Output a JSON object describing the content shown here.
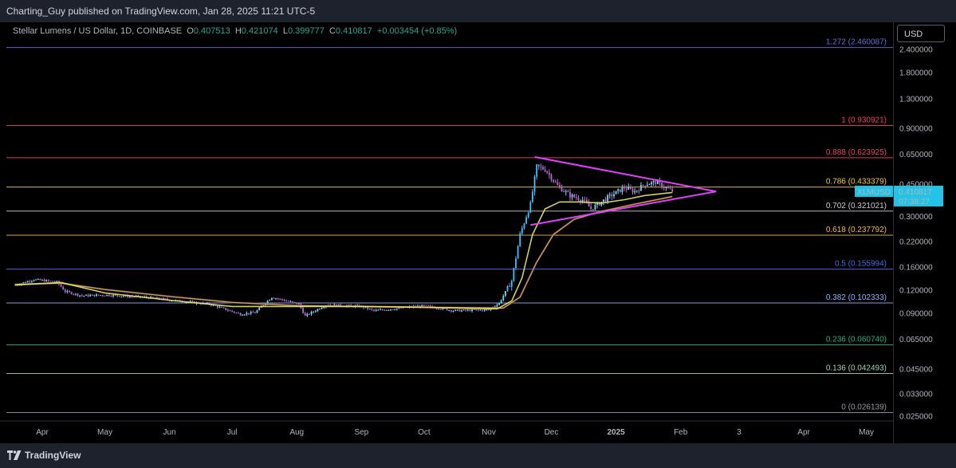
{
  "header": {
    "published": "Charting_Guy published on TradingView.com, Jan 28, 2025 11:21 UTC-5"
  },
  "legend": {
    "symbol": "Stellar Lumens / US Dollar, 1D, COINBASE",
    "o_key": "O",
    "o": "0.407513",
    "h_key": "H",
    "h": "0.421074",
    "l_key": "L",
    "l": "0.399777",
    "c_key": "C",
    "c": "0.410817",
    "change": "+0.003454 (+0.85%)"
  },
  "currency_button": "USD",
  "price_tag": {
    "symbol": "XLMUSD",
    "price": "0.410817",
    "countdown": "07:38:27",
    "color": "#22c3e6"
  },
  "footer": {
    "brand": "TradingView"
  },
  "chart_data": {
    "type": "candlestick",
    "symbol": "XLMUSD",
    "interval": "1D",
    "y_scale": "log",
    "ylim": [
      0.025,
      2.75
    ],
    "x_range": [
      "2024-03-19",
      "2025-05-19"
    ],
    "y_ticks": [
      "2.400000",
      "1.800000",
      "1.300000",
      "0.900000",
      "0.650000",
      "0.450000",
      "0.300000",
      "0.220000",
      "0.160000",
      "0.120000",
      "0.090000",
      "0.065000",
      "0.045000",
      "0.033000",
      "0.025000"
    ],
    "x_ticks": [
      {
        "label": "Apr",
        "date": "2024-04-01"
      },
      {
        "label": "May",
        "date": "2024-05-01"
      },
      {
        "label": "Jun",
        "date": "2024-06-01"
      },
      {
        "label": "Jul",
        "date": "2024-07-01"
      },
      {
        "label": "Aug",
        "date": "2024-08-01"
      },
      {
        "label": "Sep",
        "date": "2024-09-01"
      },
      {
        "label": "Oct",
        "date": "2024-10-01"
      },
      {
        "label": "Nov",
        "date": "2024-11-01"
      },
      {
        "label": "Dec",
        "date": "2024-12-01"
      },
      {
        "label": "2025",
        "date": "2025-01-01"
      },
      {
        "label": "Feb",
        "date": "2025-02-01"
      },
      {
        "label": "3",
        "date": "2025-03-01"
      },
      {
        "label": "Apr",
        "date": "2025-04-01"
      },
      {
        "label": "May",
        "date": "2025-05-01"
      }
    ],
    "fib_levels": [
      {
        "label": "1.272 (2.460087)",
        "price": 2.460087,
        "color": "#6b6bd6"
      },
      {
        "label": "1 (0.930921)",
        "price": 0.930921,
        "color": "#f23f6d"
      },
      {
        "label": "0.888 (0.623925)",
        "price": 0.623925,
        "color": "#e8436c"
      },
      {
        "label": "0.786 (0.433379)",
        "price": 0.433379,
        "color": "#f7c948"
      },
      {
        "label": "0.702 (0.321021)",
        "price": 0.321021,
        "color": "#c9ccd4"
      },
      {
        "label": "0.618 (0.237792)",
        "price": 0.237792,
        "color": "#f5b83d"
      },
      {
        "label": "0.5 (0.155994)",
        "price": 0.155994,
        "color": "#3f6fe0"
      },
      {
        "label": "0.382 (0.102333)",
        "price": 0.102333,
        "color": "#8fb2ff"
      },
      {
        "label": "0.236 (0.060740)",
        "price": 0.06074,
        "color": "#27b08a"
      },
      {
        "label": "0.136 (0.042493)",
        "price": 0.042493,
        "color": "#9fd4b6"
      },
      {
        "label": "0 (0.026139)",
        "price": 0.026139,
        "color": "#9598a1"
      }
    ],
    "price_path": [
      [
        "2024-03-19",
        0.128
      ],
      [
        "2024-03-28",
        0.137
      ],
      [
        "2024-04-08",
        0.133
      ],
      [
        "2024-04-12",
        0.118
      ],
      [
        "2024-04-20",
        0.112
      ],
      [
        "2024-05-01",
        0.113
      ],
      [
        "2024-05-20",
        0.11
      ],
      [
        "2024-06-05",
        0.105
      ],
      [
        "2024-06-20",
        0.101
      ],
      [
        "2024-07-05",
        0.089
      ],
      [
        "2024-07-12",
        0.091
      ],
      [
        "2024-07-20",
        0.11
      ],
      [
        "2024-08-02",
        0.101
      ],
      [
        "2024-08-05",
        0.087
      ],
      [
        "2024-08-15",
        0.1
      ],
      [
        "2024-09-01",
        0.098
      ],
      [
        "2024-09-07",
        0.093
      ],
      [
        "2024-09-20",
        0.096
      ],
      [
        "2024-10-01",
        0.099
      ],
      [
        "2024-10-15",
        0.093
      ],
      [
        "2024-11-01",
        0.094
      ],
      [
        "2024-11-06",
        0.102
      ],
      [
        "2024-11-12",
        0.135
      ],
      [
        "2024-11-16",
        0.24
      ],
      [
        "2024-11-21",
        0.35
      ],
      [
        "2024-11-24",
        0.56
      ],
      [
        "2024-11-28",
        0.54
      ],
      [
        "2024-12-04",
        0.44
      ],
      [
        "2024-12-10",
        0.39
      ],
      [
        "2024-12-16",
        0.37
      ],
      [
        "2024-12-20",
        0.33
      ],
      [
        "2024-12-28",
        0.38
      ],
      [
        "2025-01-05",
        0.43
      ],
      [
        "2025-01-10",
        0.41
      ],
      [
        "2025-01-15",
        0.45
      ],
      [
        "2025-01-20",
        0.46
      ],
      [
        "2025-01-28",
        0.410817
      ]
    ],
    "ema_fast": [
      [
        "2024-03-19",
        0.128
      ],
      [
        "2024-04-10",
        0.132
      ],
      [
        "2024-05-01",
        0.116
      ],
      [
        "2024-06-01",
        0.106
      ],
      [
        "2024-07-01",
        0.098
      ],
      [
        "2024-08-01",
        0.098
      ],
      [
        "2024-09-01",
        0.098
      ],
      [
        "2024-10-01",
        0.097
      ],
      [
        "2024-11-05",
        0.095
      ],
      [
        "2024-11-12",
        0.105
      ],
      [
        "2024-11-17",
        0.14
      ],
      [
        "2024-11-22",
        0.24
      ],
      [
        "2024-11-28",
        0.33
      ],
      [
        "2024-12-05",
        0.36
      ],
      [
        "2024-12-15",
        0.36
      ],
      [
        "2024-12-25",
        0.355
      ],
      [
        "2025-01-05",
        0.37
      ],
      [
        "2025-01-15",
        0.39
      ],
      [
        "2025-01-28",
        0.405
      ]
    ],
    "ema_slow": [
      [
        "2024-03-19",
        0.129
      ],
      [
        "2024-04-10",
        0.131
      ],
      [
        "2024-05-01",
        0.121
      ],
      [
        "2024-06-01",
        0.111
      ],
      [
        "2024-07-01",
        0.103
      ],
      [
        "2024-08-01",
        0.099
      ],
      [
        "2024-09-01",
        0.098
      ],
      [
        "2024-10-01",
        0.097
      ],
      [
        "2024-11-08",
        0.096
      ],
      [
        "2024-11-16",
        0.11
      ],
      [
        "2024-11-24",
        0.17
      ],
      [
        "2024-12-02",
        0.24
      ],
      [
        "2024-12-12",
        0.29
      ],
      [
        "2024-12-25",
        0.32
      ],
      [
        "2025-01-10",
        0.35
      ],
      [
        "2025-01-28",
        0.385
      ]
    ],
    "triangle": {
      "color": "#e040fb",
      "upper": [
        [
          "2024-11-23",
          0.63
        ],
        [
          "2025-02-18",
          0.41
        ]
      ],
      "lower": [
        [
          "2024-11-21",
          0.27
        ],
        [
          "2025-02-18",
          0.41
        ]
      ]
    }
  }
}
